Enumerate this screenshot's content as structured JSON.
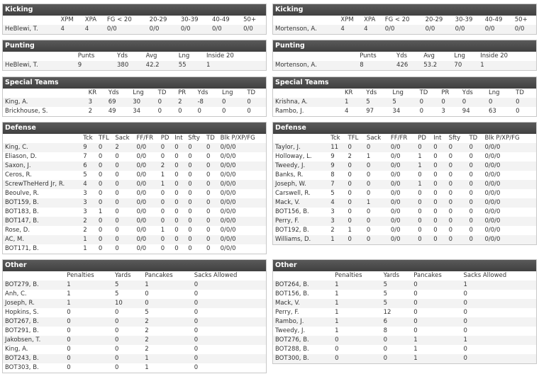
{
  "teams": [
    {
      "sections": [
        {
          "title": "Kicking",
          "columns": [
            "XPM",
            "XPA",
            "FG < 20",
            "20-29",
            "30-39",
            "40-49",
            "50+"
          ],
          "rows": [
            [
              "HeBlewi, T.",
              4,
              4,
              "0/0",
              "0/0",
              "0/0",
              "0/0",
              "0/0"
            ]
          ]
        },
        {
          "title": "Punting",
          "columns": [
            "Punts",
            "Yds",
            "Avg",
            "Lng",
            "Inside 20"
          ],
          "rows": [
            [
              "HeBlewi, T.",
              9,
              380,
              42.2,
              55,
              1
            ]
          ]
        },
        {
          "title": "Special Teams",
          "columns": [
            "KR",
            "Yds",
            "Lng",
            "TD",
            "PR",
            "Yds",
            "Lng",
            "TD"
          ],
          "rows": [
            [
              "King, A.",
              3,
              69,
              30,
              0,
              2,
              -8,
              0,
              0
            ],
            [
              "Brickhouse, S.",
              2,
              49,
              34,
              0,
              0,
              0,
              0,
              0
            ]
          ]
        },
        {
          "title": "Defense",
          "columns": [
            "Tck",
            "TFL",
            "Sack",
            "FF/FR",
            "PD",
            "Int",
            "Sfty",
            "TD",
            "Blk P/XP/FG"
          ],
          "rows": [
            [
              "King, C.",
              9,
              0,
              2,
              "0/0",
              0,
              0,
              0,
              0,
              "0/0/0"
            ],
            [
              "Eliason, D.",
              7,
              0,
              0,
              "0/0",
              0,
              0,
              0,
              0,
              "0/0/0"
            ],
            [
              "Saxon, J.",
              6,
              0,
              0,
              "0/0",
              2,
              0,
              0,
              0,
              "0/0/0"
            ],
            [
              "Ceros, R.",
              5,
              0,
              0,
              "0/0",
              1,
              0,
              0,
              0,
              "0/0/0"
            ],
            [
              "ScrewTheHerd Jr, R.",
              4,
              0,
              0,
              "0/0",
              1,
              0,
              0,
              0,
              "0/0/0"
            ],
            [
              "Beoulve, R.",
              3,
              0,
              0,
              "0/0",
              0,
              0,
              0,
              0,
              "0/0/0"
            ],
            [
              "BOT159, B.",
              3,
              0,
              0,
              "0/0",
              0,
              0,
              0,
              0,
              "0/0/0"
            ],
            [
              "BOT183, B.",
              3,
              1,
              0,
              "0/0",
              0,
              0,
              0,
              0,
              "0/0/0"
            ],
            [
              "BOT147, B.",
              2,
              0,
              0,
              "0/0",
              0,
              0,
              0,
              0,
              "0/0/0"
            ],
            [
              "Rose, D.",
              2,
              0,
              0,
              "0/0",
              1,
              0,
              0,
              0,
              "0/0/0"
            ],
            [
              "AC, M.",
              1,
              0,
              0,
              "0/0",
              0,
              0,
              0,
              0,
              "0/0/0"
            ],
            [
              "BOT171, B.",
              1,
              0,
              0,
              "0/0",
              0,
              0,
              0,
              0,
              "0/0/0"
            ]
          ]
        },
        {
          "title": "Other",
          "columns": [
            "Penalties",
            "Yards",
            "Pancakes",
            "Sacks Allowed"
          ],
          "rows": [
            [
              "BOT279, B.",
              1,
              5,
              1,
              0
            ],
            [
              "Anh, C.",
              1,
              5,
              0,
              0
            ],
            [
              "Joseph, R.",
              1,
              10,
              0,
              0
            ],
            [
              "Hopkins, S.",
              0,
              0,
              5,
              0
            ],
            [
              "BOT267, B.",
              0,
              0,
              2,
              0
            ],
            [
              "BOT291, B.",
              0,
              0,
              2,
              0
            ],
            [
              "Jakobsen, T.",
              0,
              0,
              2,
              0
            ],
            [
              "King, A.",
              0,
              0,
              2,
              0
            ],
            [
              "BOT243, B.",
              0,
              0,
              1,
              0
            ],
            [
              "BOT303, B.",
              0,
              0,
              1,
              0
            ]
          ]
        }
      ]
    },
    {
      "sections": [
        {
          "title": "Kicking",
          "columns": [
            "XPM",
            "XPA",
            "FG < 20",
            "20-29",
            "30-39",
            "40-49",
            "50+"
          ],
          "rows": [
            [
              "Mortenson, A.",
              4,
              4,
              "0/0",
              "0/0",
              "0/0",
              "0/0",
              "0/0"
            ]
          ]
        },
        {
          "title": "Punting",
          "columns": [
            "Punts",
            "Yds",
            "Avg",
            "Lng",
            "Inside 20"
          ],
          "rows": [
            [
              "Mortenson, A.",
              8,
              426,
              53.2,
              70,
              1
            ]
          ]
        },
        {
          "title": "Special Teams",
          "columns": [
            "KR",
            "Yds",
            "Lng",
            "TD",
            "PR",
            "Yds",
            "Lng",
            "TD"
          ],
          "rows": [
            [
              "Krishna, A.",
              1,
              5,
              5,
              0,
              0,
              0,
              0,
              0
            ],
            [
              "Rambo, J.",
              4,
              97,
              34,
              0,
              3,
              94,
              63,
              0
            ]
          ]
        },
        {
          "title": "Defense",
          "columns": [
            "Tck",
            "TFL",
            "Sack",
            "FF/FR",
            "PD",
            "Int",
            "Sfty",
            "TD",
            "Blk P/XP/FG"
          ],
          "rows": [
            [
              "Taylor, J.",
              11,
              0,
              0,
              "0/0",
              0,
              0,
              0,
              0,
              "0/0/0"
            ],
            [
              "Holloway, L.",
              9,
              2,
              1,
              "0/0",
              1,
              0,
              0,
              0,
              "0/0/0"
            ],
            [
              "Tweedy, J.",
              9,
              0,
              0,
              "0/0",
              1,
              0,
              0,
              0,
              "0/0/0"
            ],
            [
              "Banks, R.",
              8,
              0,
              0,
              "0/0",
              0,
              0,
              0,
              0,
              "0/0/0"
            ],
            [
              "Joseph, W.",
              7,
              0,
              0,
              "0/0",
              1,
              0,
              0,
              0,
              "0/0/0"
            ],
            [
              "Carswell, R.",
              5,
              0,
              0,
              "0/0",
              0,
              0,
              0,
              0,
              "0/0/0"
            ],
            [
              "Mack, V.",
              4,
              0,
              1,
              "0/0",
              0,
              0,
              0,
              0,
              "0/0/0"
            ],
            [
              "BOT156, B.",
              3,
              0,
              0,
              "0/0",
              0,
              0,
              0,
              0,
              "0/0/0"
            ],
            [
              "Perry, F.",
              3,
              0,
              0,
              "0/0",
              0,
              0,
              0,
              0,
              "0/0/0"
            ],
            [
              "BOT192, B.",
              2,
              1,
              0,
              "0/0",
              0,
              0,
              0,
              0,
              "0/0/0"
            ],
            [
              "Williams, D.",
              1,
              0,
              0,
              "0/0",
              0,
              0,
              0,
              0,
              "0/0/0"
            ]
          ]
        },
        {
          "title": "Other",
          "columns": [
            "Penalties",
            "Yards",
            "Pancakes",
            "Sacks Allowed"
          ],
          "rows": [
            [
              "BOT264, B.",
              1,
              5,
              0,
              1
            ],
            [
              "BOT156, B.",
              1,
              5,
              0,
              0
            ],
            [
              "Mack, V.",
              1,
              5,
              0,
              0
            ],
            [
              "Perry, F.",
              1,
              12,
              0,
              0
            ],
            [
              "Rambo, J.",
              1,
              6,
              0,
              0
            ],
            [
              "Tweedy, J.",
              1,
              8,
              0,
              0
            ],
            [
              "BOT276, B.",
              0,
              0,
              1,
              1
            ],
            [
              "BOT288, B.",
              0,
              0,
              1,
              0
            ],
            [
              "BOT300, B.",
              0,
              0,
              1,
              0
            ]
          ]
        }
      ]
    }
  ]
}
